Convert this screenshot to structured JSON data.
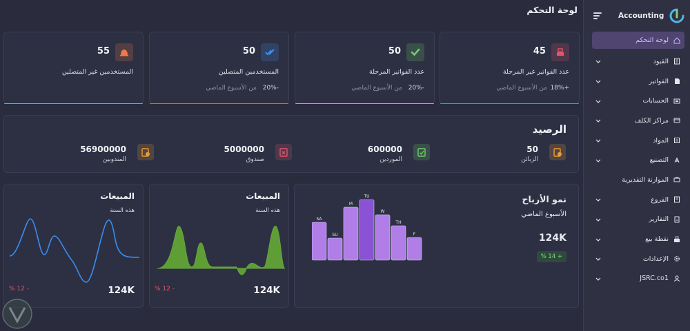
{
  "sidebar": {
    "brand": "Accounting",
    "items": [
      {
        "label": "لوحة التحكم",
        "icon": "home-icon",
        "active": true,
        "expandable": false
      },
      {
        "label": "القيود",
        "icon": "journal-icon",
        "active": false,
        "expandable": true
      },
      {
        "label": "الفواتير",
        "icon": "invoice-icon",
        "active": false,
        "expandable": true
      },
      {
        "label": "الحسابات",
        "icon": "accounts-icon",
        "active": false,
        "expandable": true
      },
      {
        "label": "مراكز الكلف",
        "icon": "cost-center-icon",
        "active": false,
        "expandable": true
      },
      {
        "label": "المواد",
        "icon": "materials-icon",
        "active": false,
        "expandable": true
      },
      {
        "label": "التصنيع",
        "icon": "manufacturing-icon",
        "active": false,
        "expandable": true
      },
      {
        "label": "الموازنة التقديرية",
        "icon": "budget-icon",
        "active": false,
        "expandable": false
      },
      {
        "label": "الفروع",
        "icon": "branches-icon",
        "active": false,
        "expandable": true
      },
      {
        "label": "التقارير",
        "icon": "reports-icon",
        "active": false,
        "expandable": true
      },
      {
        "label": "نقطة بيع",
        "icon": "pos-icon",
        "active": false,
        "expandable": true
      },
      {
        "label": "الإعدادات",
        "icon": "settings-icon",
        "active": false,
        "expandable": true
      },
      {
        "label": "JSRC.co1",
        "icon": "user-icon",
        "active": false,
        "expandable": true
      }
    ]
  },
  "page_title": "لوحة التحكم",
  "stats": [
    {
      "value": "45",
      "label": "عدد الفواتير غير المرحلة",
      "delta": "+18%",
      "period": "من الأسبوع الماضي",
      "color": "#e2566b",
      "icon": "cash-register-icon"
    },
    {
      "value": "50",
      "label": "عدد الفواتير المرحلة",
      "delta": "-20%",
      "period": "من الأسبوع الماضي",
      "color": "#6fcf6a",
      "icon": "check-icon"
    },
    {
      "value": "50",
      "label": "المستخدمين المتصلين",
      "delta": "-20%",
      "period": "من الأسبوع الماضي",
      "color": "#3b8ff2",
      "icon": "double-check-icon"
    },
    {
      "value": "55",
      "label": "المستخدمين غير المتصلين",
      "delta": "",
      "period": "",
      "color": "#f07a45",
      "icon": "bell-icon"
    }
  ],
  "balance": {
    "title": "الرصيد",
    "items": [
      {
        "value": "50",
        "label": "الزبائن",
        "color": "#e99b36",
        "icon": "clipboard-clock-icon"
      },
      {
        "value": "600000",
        "label": "الموردين",
        "color": "#6fcf6a",
        "icon": "clipboard-check-icon"
      },
      {
        "value": "5000000",
        "label": "صندوق",
        "color": "#e2566b",
        "icon": "clipboard-x-icon"
      },
      {
        "value": "56900000",
        "label": "المندوبين",
        "color": "#e99b36",
        "icon": "clipboard-clock-icon"
      }
    ]
  },
  "profit": {
    "title": "نمو الأرباح",
    "subtitle": "الأسبوع الماضي",
    "value": "124K",
    "badge": "+ 14 %",
    "badge_color": "#7bd88f"
  },
  "sales_green": {
    "title": "المبيعات",
    "subtitle": "هذه السنة",
    "value": "124K",
    "delta": "- 12 %",
    "color": "#67a83c"
  },
  "sales_blue": {
    "title": "المبيعات",
    "subtitle": "هذه السنة",
    "value": "124K",
    "delta": "- 12 %",
    "color": "#3a8df0"
  },
  "chart_data": {
    "type": "bar",
    "categories": [
      "SA",
      "SU",
      "M",
      "TU",
      "W",
      "TH",
      "F"
    ],
    "values": [
      55,
      32,
      77,
      88,
      66,
      50,
      33
    ],
    "highlight": "TU",
    "colors": {
      "bar": "#b07ee6",
      "highlight": "#8a52d4"
    }
  }
}
